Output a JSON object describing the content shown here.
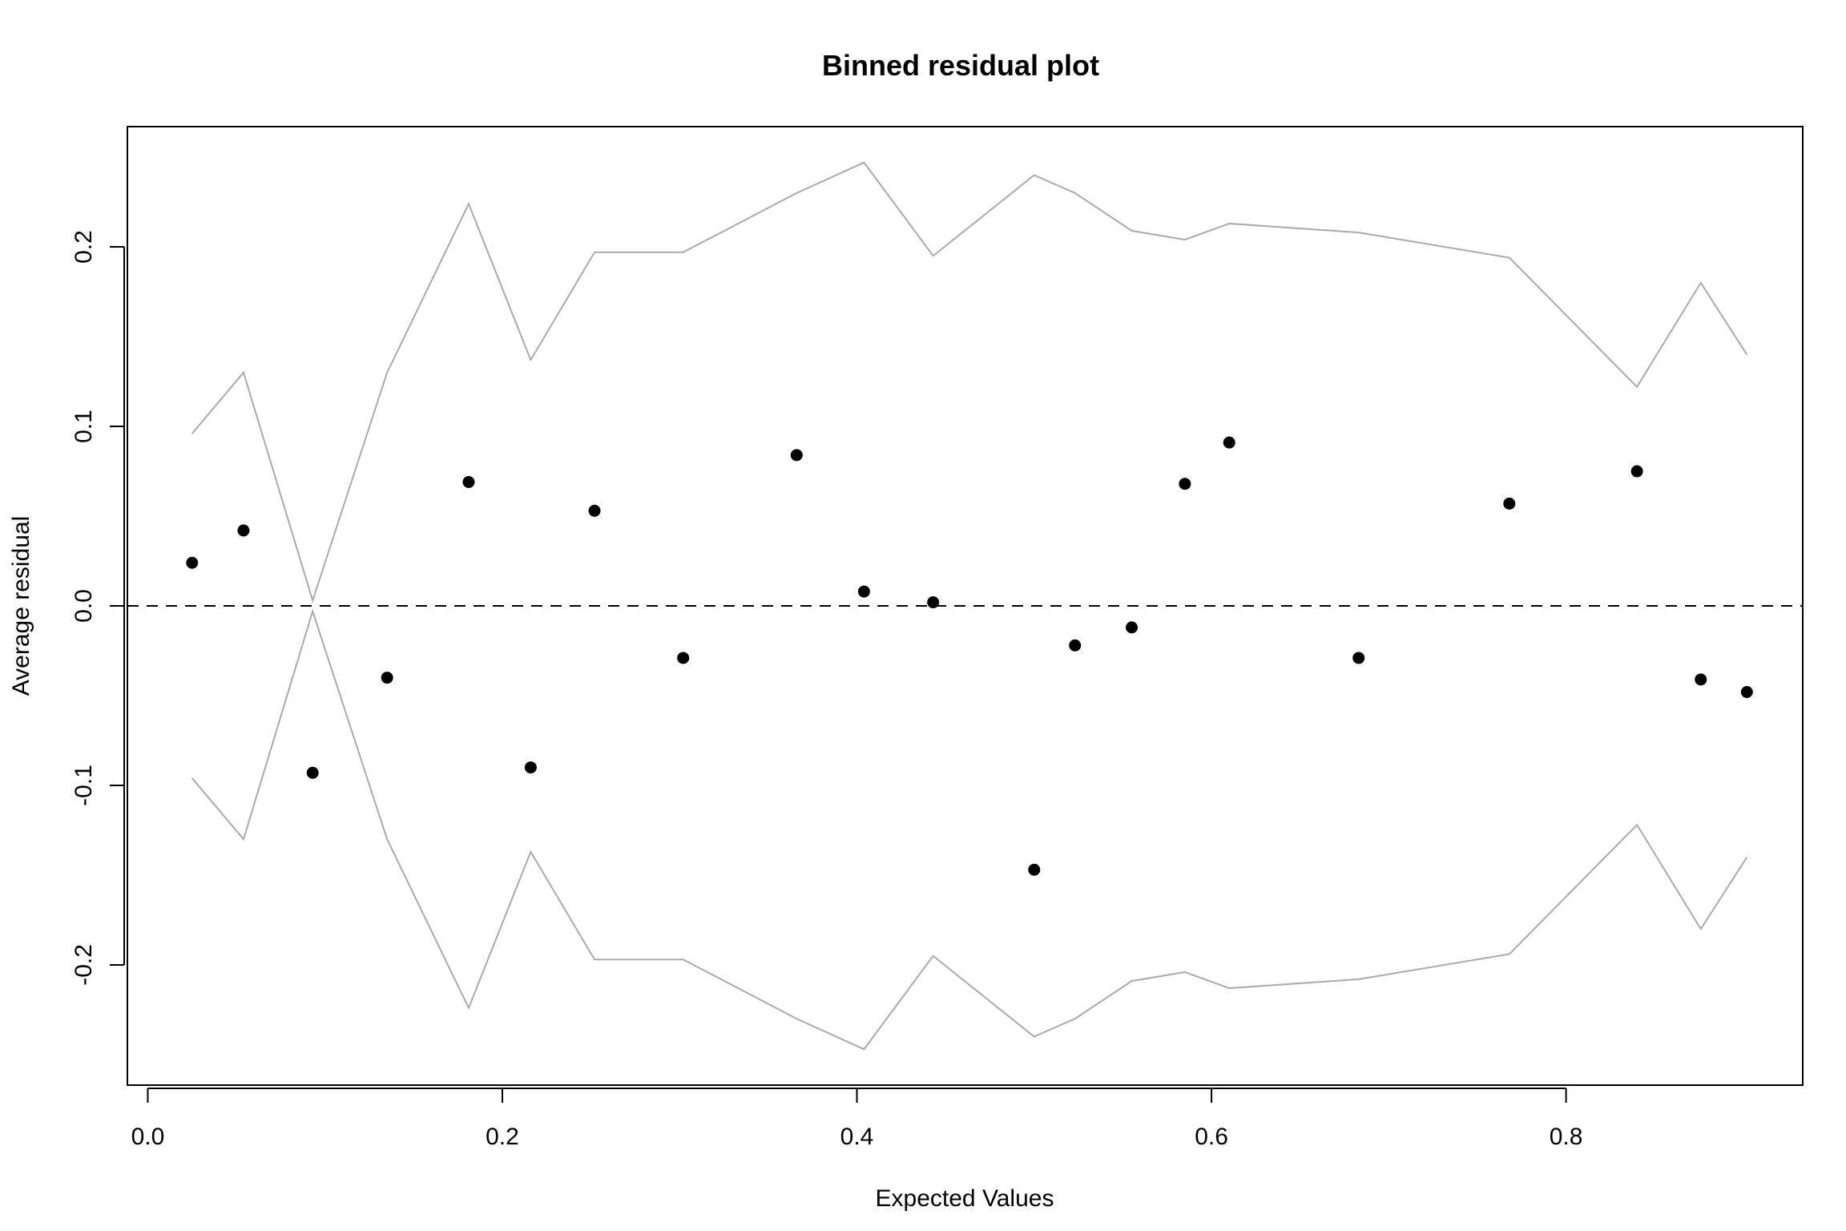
{
  "chart_data": {
    "type": "scatter",
    "title": "Binned residual plot",
    "xlabel": "Expected Values",
    "ylabel": "Average residual",
    "xlim": [
      -0.0115,
      0.9335
    ],
    "ylim": [
      -0.267,
      0.267
    ],
    "x_ticks": [
      {
        "value": 0.0,
        "label": "0.0"
      },
      {
        "value": 0.2,
        "label": "0.2"
      },
      {
        "value": 0.4,
        "label": "0.4"
      },
      {
        "value": 0.6,
        "label": "0.6"
      },
      {
        "value": 0.8,
        "label": "0.8"
      }
    ],
    "y_ticks": [
      {
        "value": -0.2,
        "label": "-0.2"
      },
      {
        "value": -0.1,
        "label": "-0.1"
      },
      {
        "value": 0.0,
        "label": "0.0"
      },
      {
        "value": 0.1,
        "label": "0.1"
      },
      {
        "value": 0.2,
        "label": "0.2"
      }
    ],
    "points": [
      {
        "x": 0.025,
        "y": 0.024
      },
      {
        "x": 0.054,
        "y": 0.042
      },
      {
        "x": 0.093,
        "y": -0.093
      },
      {
        "x": 0.135,
        "y": -0.04
      },
      {
        "x": 0.181,
        "y": 0.069
      },
      {
        "x": 0.216,
        "y": -0.09
      },
      {
        "x": 0.252,
        "y": 0.053
      },
      {
        "x": 0.302,
        "y": -0.029
      },
      {
        "x": 0.366,
        "y": 0.084
      },
      {
        "x": 0.404,
        "y": 0.008
      },
      {
        "x": 0.443,
        "y": 0.002
      },
      {
        "x": 0.5,
        "y": -0.147
      },
      {
        "x": 0.523,
        "y": -0.022
      },
      {
        "x": 0.555,
        "y": -0.012
      },
      {
        "x": 0.585,
        "y": 0.068
      },
      {
        "x": 0.61,
        "y": 0.091
      },
      {
        "x": 0.683,
        "y": -0.029
      },
      {
        "x": 0.768,
        "y": 0.057
      },
      {
        "x": 0.84,
        "y": 0.075
      },
      {
        "x": 0.876,
        "y": -0.041
      },
      {
        "x": 0.902,
        "y": -0.048
      }
    ],
    "bounds": [
      0.096,
      0.13,
      0.003,
      0.13,
      0.224,
      0.137,
      0.197,
      0.197,
      0.23,
      0.247,
      0.195,
      0.24,
      0.23,
      0.209,
      0.204,
      0.213,
      0.208,
      0.194,
      0.122,
      0.18,
      0.14
    ],
    "reference_line": 0.0,
    "grid": false,
    "colors": {
      "points": "#000000",
      "bounds": "#aaaaaa",
      "reference_line": "#000000"
    }
  }
}
